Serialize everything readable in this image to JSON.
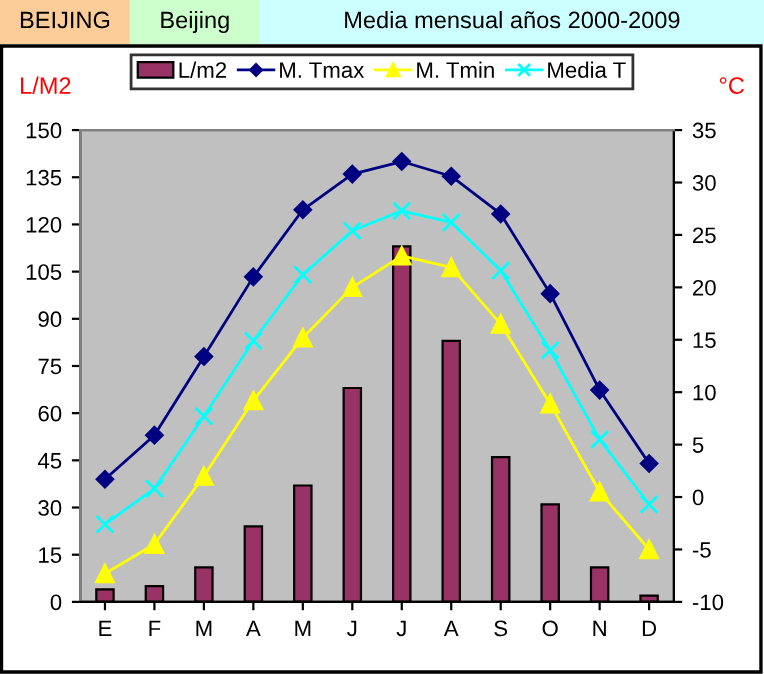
{
  "chart_data": {
    "type": "bar",
    "title": "BEIJING",
    "subtitle": "Beijing",
    "annotations": [
      "Media mensual años 2000-2009"
    ],
    "ylabel": "L/M2",
    "y2label": "°C",
    "categories": [
      "E",
      "F",
      "M",
      "A",
      "M",
      "J",
      "J",
      "A",
      "S",
      "O",
      "N",
      "D"
    ],
    "series": [
      {
        "name": "L/m2",
        "color": "#993366",
        "values": [
          4,
          5,
          11,
          24,
          37,
          68,
          113,
          83,
          46,
          31,
          11,
          2
        ]
      },
      {
        "name": "M. Tmax",
        "type": "line",
        "axis": "y2",
        "color": "#000080",
        "marker": "diamond",
        "values": [
          1.7,
          5.9,
          13.4,
          21.0,
          27.4,
          30.8,
          32.0,
          30.6,
          27.0,
          19.4,
          10.2,
          3.2
        ]
      },
      {
        "name": "M. Tmin",
        "type": "line",
        "axis": "y2",
        "color": "#ffff00",
        "marker": "triangle",
        "values": [
          -7.3,
          -4.5,
          2.0,
          9.2,
          15.2,
          20.0,
          23.0,
          21.9,
          16.5,
          8.9,
          0.5,
          -5.0
        ]
      },
      {
        "name": "Media T",
        "type": "line",
        "axis": "y2",
        "color": "#00ffff",
        "marker": "cross",
        "values": [
          -2.6,
          0.8,
          7.7,
          14.9,
          21.2,
          25.4,
          27.3,
          26.2,
          21.6,
          14.0,
          5.5,
          -0.7
        ]
      }
    ],
    "ylim": [
      0,
      150
    ],
    "yticks": [
      0,
      15,
      30,
      45,
      60,
      75,
      90,
      105,
      120,
      135,
      150
    ],
    "y2lim": [
      -10,
      35
    ],
    "y2ticks": [
      -10,
      -5,
      0,
      5,
      10,
      15,
      20,
      25,
      30,
      35
    ],
    "grid": false,
    "legend": "top"
  }
}
